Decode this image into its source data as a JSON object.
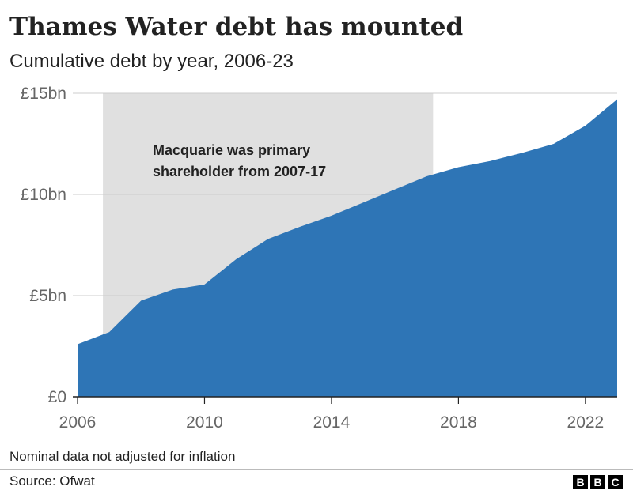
{
  "header": {
    "title": "Thames Water debt has mounted",
    "subtitle": "Cumulative debt by year, 2006-23"
  },
  "footer": {
    "note": "Nominal data not adjusted for inflation",
    "source": "Source: Ofwat",
    "logo_letters": [
      "B",
      "B",
      "C"
    ]
  },
  "colors": {
    "area": "#2e75b6",
    "shading": "#e0e0e0",
    "axis": "#222222",
    "gridline": "#cccccc",
    "tick_text": "#666666"
  },
  "chart_data": {
    "type": "area",
    "title": "Thames Water debt has mounted",
    "subtitle": "Cumulative debt by year, 2006-23",
    "xlabel": "",
    "ylabel": "",
    "x": [
      2006,
      2007,
      2008,
      2009,
      2010,
      2011,
      2012,
      2013,
      2014,
      2015,
      2016,
      2017,
      2018,
      2019,
      2020,
      2021,
      2022,
      2023
    ],
    "series": [
      {
        "values": [
          2.6,
          3.2,
          4.75,
          5.3,
          5.55,
          6.8,
          7.8,
          8.4,
          8.95,
          9.6,
          10.25,
          10.9,
          11.35,
          11.65,
          12.05,
          12.5,
          13.4,
          14.7
        ]
      }
    ],
    "xlim": [
      2006,
      2023
    ],
    "ylim": [
      0,
      15
    ],
    "xticks": [
      2006,
      2010,
      2014,
      2018,
      2022
    ],
    "xtick_labels": [
      "2006",
      "2010",
      "2014",
      "2018",
      "2022"
    ],
    "yticks": [
      0,
      5,
      10,
      15
    ],
    "ytick_labels": [
      "£0",
      "£5bn",
      "£10bn",
      "£15bn"
    ],
    "grid": true,
    "legend": "none",
    "highlight_band": {
      "from": 2006.8,
      "to": 2017.2,
      "label_lines": [
        "Macquarie was primary",
        "shareholder from 2007-17"
      ]
    }
  }
}
